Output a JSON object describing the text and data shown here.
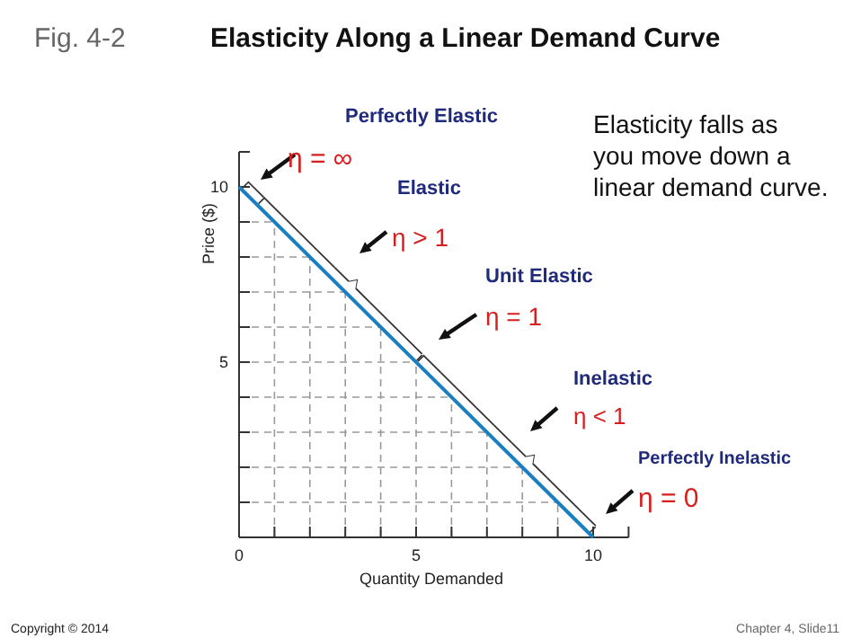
{
  "chart_data": {
    "type": "line",
    "title": "Elasticity Along a Linear Demand Curve",
    "xlabel": "Quantity Demanded",
    "ylabel": "Price ($)",
    "x": [
      0,
      10
    ],
    "series": [
      {
        "color": "#1a7fc1",
        "values": [
          10,
          0
        ]
      }
    ],
    "xlim": [
      0,
      11
    ],
    "ylim": [
      0,
      11
    ],
    "xticks": [
      0,
      {
        "value": 1,
        "label": null
      },
      {
        "value": 2,
        "label": null
      },
      {
        "value": 3,
        "label": null
      },
      {
        "value": 4,
        "label": null
      },
      5,
      {
        "value": 6,
        "label": null
      },
      {
        "value": 7,
        "label": null
      },
      {
        "value": 8,
        "label": null
      },
      {
        "value": 9,
        "label": null
      },
      10
    ],
    "yticks": [
      {
        "value": 1,
        "label": null
      },
      {
        "value": 2,
        "label": null
      },
      {
        "value": 3,
        "label": null
      },
      {
        "value": 4,
        "label": null
      },
      5,
      {
        "value": 6,
        "label": null
      },
      {
        "value": 7,
        "label": null
      },
      {
        "value": 8,
        "label": null
      },
      {
        "value": 9,
        "label": null
      },
      10
    ],
    "grid": true,
    "marker": "none",
    "line_style": "solid",
    "annotations": [
      "Perfectly Elastic",
      "η = ∞",
      "Elastic",
      "η > 1",
      "Unit Elastic",
      "η = 1",
      "Inelastic",
      "η < 1",
      "Perfectly Inelastic",
      "η = 0",
      "Elasticity falls as you move down a linear demand curve.",
      "Fig. 4-2",
      "Copyright © 2014",
      "Chapter 4, Slide11"
    ]
  }
}
